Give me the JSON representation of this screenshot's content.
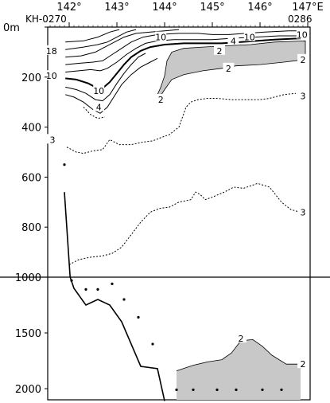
{
  "chart_data": {
    "type": "contour",
    "stations": {
      "left": "KH-0270",
      "right": "0286"
    },
    "x_axis": {
      "ticks": [
        142,
        143,
        144,
        145,
        146,
        147
      ],
      "tick_labels": [
        "142°",
        "143°",
        "144°",
        "145°",
        "146°",
        "147°E"
      ],
      "xlim": [
        141.55,
        147.05
      ]
    },
    "y_axis_upper": {
      "ticks": [
        0,
        200,
        400,
        600,
        800,
        1000
      ],
      "tick_labels": [
        "0m",
        "200",
        "400",
        "600",
        "800",
        "1000"
      ],
      "ylim": [
        0,
        1000
      ]
    },
    "y_axis_lower": {
      "ticks": [
        1000,
        1500,
        2000
      ],
      "tick_labels": [
        "1000",
        "1500",
        "2000"
      ],
      "ylim": [
        1000,
        2100
      ]
    },
    "contour_labels": [
      {
        "text": "18",
        "lon": 141.63,
        "depth": 95
      },
      {
        "text": "10",
        "lon": 141.63,
        "depth": 195
      },
      {
        "text": "10",
        "lon": 142.62,
        "depth": 255
      },
      {
        "text": "4",
        "lon": 142.62,
        "depth": 320
      },
      {
        "text": "10",
        "lon": 143.92,
        "depth": 40
      },
      {
        "text": "4",
        "lon": 145.44,
        "depth": 55
      },
      {
        "text": "10",
        "lon": 145.78,
        "depth": 40
      },
      {
        "text": "10",
        "lon": 146.88,
        "depth": 30
      },
      {
        "text": "2",
        "lon": 143.92,
        "depth": 290
      },
      {
        "text": "2",
        "lon": 145.15,
        "depth": 95
      },
      {
        "text": "2",
        "lon": 145.34,
        "depth": 165
      },
      {
        "text": "2",
        "lon": 146.9,
        "depth": 130
      },
      {
        "text": "3",
        "lon": 146.9,
        "depth": 275
      },
      {
        "text": "3",
        "lon": 141.65,
        "depth": 450
      },
      {
        "text": "3",
        "lon": 146.9,
        "depth": 740
      },
      {
        "text": "2",
        "lon": 145.6,
        "depth": 1550
      },
      {
        "text": "2",
        "lon": 146.9,
        "depth": 1780
      }
    ],
    "contours": [
      {
        "level": 18,
        "style": "solid",
        "points": [
          [
            141.92,
            60
          ],
          [
            142.3,
            55
          ],
          [
            142.6,
            40
          ],
          [
            142.85,
            20
          ],
          [
            143.05,
            10
          ]
        ]
      },
      {
        "level": 10,
        "style": "solid",
        "points": [
          [
            141.92,
            90
          ],
          [
            142.3,
            80
          ],
          [
            142.6,
            70
          ],
          [
            142.8,
            60
          ],
          [
            143.0,
            40
          ],
          [
            143.2,
            20
          ],
          [
            143.4,
            10
          ]
        ]
      },
      {
        "level": 10,
        "style": "solid",
        "points": [
          [
            141.92,
            120
          ],
          [
            142.25,
            115
          ],
          [
            142.55,
            100
          ],
          [
            142.75,
            80
          ],
          [
            142.95,
            60
          ],
          [
            143.15,
            40
          ],
          [
            143.4,
            25
          ],
          [
            143.7,
            20
          ],
          [
            144.0,
            15
          ],
          [
            144.3,
            10
          ]
        ]
      },
      {
        "level": 10,
        "style": "solid",
        "points": [
          [
            141.92,
            150
          ],
          [
            142.2,
            145
          ],
          [
            142.5,
            140
          ],
          [
            142.7,
            135
          ],
          [
            142.9,
            110
          ],
          [
            143.1,
            85
          ],
          [
            143.3,
            60
          ],
          [
            143.55,
            40
          ],
          [
            143.85,
            30
          ],
          [
            144.3,
            25
          ],
          [
            144.7,
            25
          ],
          [
            145.0,
            30
          ],
          [
            145.35,
            30
          ],
          [
            145.7,
            25
          ],
          [
            146.1,
            20
          ],
          [
            146.6,
            15
          ],
          [
            146.85,
            15
          ]
        ]
      },
      {
        "level": 10,
        "style": "solid",
        "points": [
          [
            141.92,
            180
          ],
          [
            142.2,
            175
          ],
          [
            142.45,
            170
          ],
          [
            142.65,
            175
          ],
          [
            142.8,
            165
          ],
          [
            143.0,
            140
          ],
          [
            143.2,
            110
          ],
          [
            143.4,
            85
          ],
          [
            143.6,
            65
          ],
          [
            143.85,
            55
          ],
          [
            144.2,
            50
          ],
          [
            144.6,
            50
          ],
          [
            145.0,
            50
          ],
          [
            145.4,
            45
          ],
          [
            145.9,
            40
          ],
          [
            146.4,
            35
          ],
          [
            146.85,
            35
          ]
        ]
      },
      {
        "level": 10,
        "style": "solid",
        "bold": true,
        "points": [
          [
            141.92,
            205
          ],
          [
            142.15,
            210
          ],
          [
            142.4,
            225
          ],
          [
            142.55,
            240
          ],
          [
            142.7,
            245
          ],
          [
            142.85,
            220
          ],
          [
            143.0,
            185
          ],
          [
            143.15,
            150
          ],
          [
            143.3,
            120
          ],
          [
            143.5,
            95
          ],
          [
            143.7,
            80
          ],
          [
            144.0,
            70
          ],
          [
            144.4,
            65
          ],
          [
            144.8,
            65
          ],
          [
            145.2,
            65
          ],
          [
            145.6,
            60
          ],
          [
            145.95,
            55
          ],
          [
            146.3,
            50
          ],
          [
            146.85,
            45
          ]
        ]
      },
      {
        "level": 4,
        "style": "solid",
        "points": [
          [
            141.92,
            240
          ],
          [
            142.15,
            250
          ],
          [
            142.35,
            265
          ],
          [
            142.55,
            290
          ],
          [
            142.7,
            295
          ],
          [
            142.85,
            270
          ],
          [
            143.0,
            225
          ],
          [
            143.15,
            185
          ],
          [
            143.3,
            150
          ],
          [
            143.45,
            120
          ],
          [
            143.6,
            105
          ]
        ]
      },
      {
        "level": 4,
        "style": "solid",
        "points": [
          [
            141.92,
            270
          ],
          [
            142.1,
            280
          ],
          [
            142.3,
            300
          ],
          [
            142.5,
            330
          ],
          [
            142.65,
            345
          ],
          [
            142.8,
            320
          ],
          [
            142.95,
            275
          ],
          [
            143.1,
            230
          ],
          [
            143.3,
            190
          ],
          [
            143.5,
            160
          ],
          [
            143.7,
            140
          ],
          [
            143.85,
            125
          ]
        ]
      },
      {
        "level": 4,
        "style": "dotted",
        "points": [
          [
            142.3,
            320
          ],
          [
            142.45,
            350
          ],
          [
            142.6,
            365
          ],
          [
            142.75,
            360
          ]
        ]
      },
      {
        "level": 3,
        "style": "dotted",
        "points": [
          [
            141.95,
            480
          ],
          [
            142.15,
            500
          ],
          [
            142.3,
            505
          ],
          [
            142.5,
            495
          ],
          [
            142.7,
            490
          ],
          [
            142.85,
            450
          ],
          [
            143.05,
            470
          ],
          [
            143.3,
            470
          ],
          [
            143.55,
            460
          ],
          [
            143.75,
            455
          ],
          [
            143.95,
            440
          ],
          [
            144.1,
            430
          ],
          [
            144.3,
            400
          ],
          [
            144.45,
            320
          ],
          [
            144.55,
            300
          ],
          [
            144.7,
            290
          ],
          [
            144.9,
            285
          ],
          [
            145.1,
            285
          ],
          [
            145.4,
            290
          ],
          [
            145.7,
            290
          ],
          [
            146.0,
            290
          ],
          [
            146.2,
            285
          ],
          [
            146.5,
            270
          ],
          [
            146.75,
            265
          ]
        ]
      },
      {
        "level": 3,
        "style": "dotted",
        "points": [
          [
            142.0,
            950
          ],
          [
            142.2,
            930
          ],
          [
            142.45,
            920
          ],
          [
            142.7,
            915
          ],
          [
            142.9,
            905
          ],
          [
            143.1,
            880
          ],
          [
            143.3,
            830
          ],
          [
            143.5,
            780
          ],
          [
            143.7,
            740
          ],
          [
            143.9,
            725
          ],
          [
            144.1,
            720
          ],
          [
            144.3,
            700
          ],
          [
            144.55,
            690
          ],
          [
            144.65,
            660
          ],
          [
            144.75,
            670
          ],
          [
            144.85,
            690
          ],
          [
            145.0,
            680
          ],
          [
            145.25,
            660
          ],
          [
            145.45,
            640
          ],
          [
            145.65,
            645
          ],
          [
            145.95,
            625
          ],
          [
            146.2,
            640
          ],
          [
            146.45,
            700
          ],
          [
            146.65,
            730
          ],
          [
            146.85,
            740
          ]
        ]
      }
    ],
    "shaded_upper": {
      "level": 2,
      "top": [
        [
          143.92,
          240
        ],
        [
          144.0,
          195
        ],
        [
          144.05,
          135
        ],
        [
          144.15,
          100
        ],
        [
          144.4,
          85
        ],
        [
          144.8,
          80
        ],
        [
          145.3,
          75
        ],
        [
          145.8,
          70
        ],
        [
          146.3,
          60
        ],
        [
          146.95,
          55
        ]
      ],
      "bottom": [
        [
          146.95,
          130
        ],
        [
          146.5,
          140
        ],
        [
          146.0,
          150
        ],
        [
          145.5,
          155
        ],
        [
          145.2,
          165
        ],
        [
          144.8,
          175
        ],
        [
          144.4,
          190
        ],
        [
          144.15,
          210
        ],
        [
          144.0,
          250
        ],
        [
          143.9,
          280
        ],
        [
          143.85,
          270
        ]
      ]
    },
    "shaded_lower": {
      "level": 2,
      "top": [
        [
          144.25,
          1840
        ],
        [
          144.6,
          1790
        ],
        [
          144.9,
          1760
        ],
        [
          145.2,
          1740
        ],
        [
          145.4,
          1680
        ],
        [
          145.6,
          1570
        ],
        [
          145.85,
          1560
        ],
        [
          146.05,
          1620
        ],
        [
          146.25,
          1700
        ],
        [
          146.55,
          1780
        ],
        [
          146.85,
          1780
        ]
      ],
      "bottom_depth": 2100
    },
    "bathymetry": [
      [
        141.9,
        660
      ],
      [
        142.02,
        1000
      ],
      [
        142.1,
        1100
      ],
      [
        142.35,
        1250
      ],
      [
        142.6,
        1200
      ],
      [
        142.85,
        1250
      ],
      [
        143.1,
        1400
      ],
      [
        143.5,
        1800
      ],
      [
        143.85,
        1820
      ],
      [
        144.0,
        2110
      ]
    ],
    "sample_dots": [
      [
        141.9,
        550
      ],
      [
        142.05,
        1030
      ],
      [
        142.35,
        1110
      ],
      [
        142.6,
        1110
      ],
      [
        142.9,
        1060
      ],
      [
        143.15,
        1200
      ],
      [
        143.45,
        1360
      ],
      [
        143.75,
        1600
      ],
      [
        144.25,
        2010
      ],
      [
        144.6,
        2010
      ],
      [
        145.1,
        2010
      ],
      [
        145.5,
        2010
      ],
      [
        146.05,
        2010
      ],
      [
        146.45,
        2010
      ]
    ]
  }
}
